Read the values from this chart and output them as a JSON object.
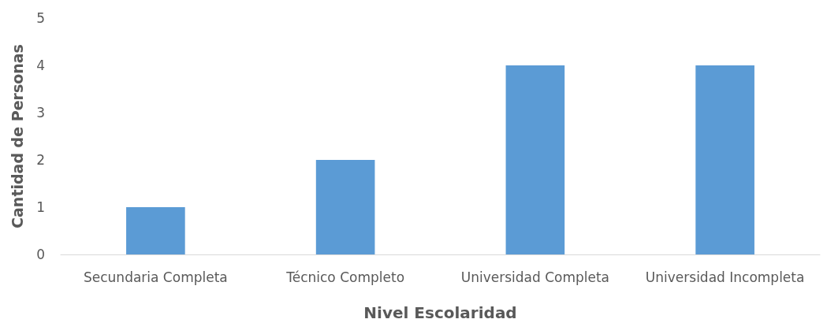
{
  "chart_data": {
    "type": "bar",
    "xlabel": "Nivel Escolaridad",
    "ylabel": "Cantidad de Personas",
    "categories": [
      "Secundaria Completa",
      "Técnico Completo",
      "Universidad Completa",
      "Universidad Incompleta"
    ],
    "values": [
      1,
      2,
      4,
      4
    ],
    "color": "#5b9bd5",
    "ylim": [
      0,
      5
    ],
    "yticks": [
      0,
      1,
      2,
      3,
      4,
      5
    ],
    "grid": false
  }
}
